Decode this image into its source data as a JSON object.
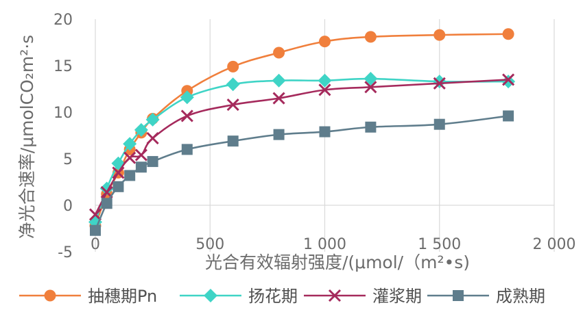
{
  "chart_data": {
    "type": "scatter",
    "title": "",
    "xlabel": "光合有效辐射强度/(μmol/（m²•s)",
    "ylabel": "净光合速率/μmolCO₂m²·s",
    "xlim": [
      0,
      2000
    ],
    "ylim": [
      -5,
      20
    ],
    "x_ticks": [
      "0",
      "500",
      "1 000",
      "1 500",
      "2 000"
    ],
    "y_ticks": [
      "-5",
      "0",
      "5",
      "10",
      "15",
      "20"
    ],
    "grid": "vertical",
    "legend_position": "bottom",
    "series": [
      {
        "name": "抽穗期Pn",
        "color": "#F07F3C",
        "marker": "circle",
        "points": [
          [
            0,
            -2.2
          ],
          [
            50,
            1.2
          ],
          [
            100,
            3.5
          ],
          [
            150,
            6.0
          ],
          [
            200,
            7.8
          ],
          [
            250,
            9.3
          ],
          [
            400,
            12.3
          ],
          [
            600,
            14.9
          ],
          [
            800,
            16.4
          ],
          [
            1000,
            17.6
          ],
          [
            1200,
            18.1
          ],
          [
            1500,
            18.3
          ],
          [
            1800,
            18.4
          ]
        ]
      },
      {
        "name": "扬花期",
        "color": "#3FD4C6",
        "marker": "diamond",
        "points": [
          [
            0,
            -1.8
          ],
          [
            50,
            1.8
          ],
          [
            100,
            4.5
          ],
          [
            150,
            6.6
          ],
          [
            200,
            8.1
          ],
          [
            250,
            9.2
          ],
          [
            400,
            11.6
          ],
          [
            600,
            13.0
          ],
          [
            800,
            13.4
          ],
          [
            1000,
            13.4
          ],
          [
            1200,
            13.6
          ],
          [
            1500,
            13.3
          ],
          [
            1800,
            13.3
          ]
        ]
      },
      {
        "name": "灌浆期",
        "color": "#A52A5C",
        "marker": "x",
        "points": [
          [
            0,
            -1.0
          ],
          [
            50,
            1.4
          ],
          [
            100,
            3.5
          ],
          [
            150,
            5.1
          ],
          [
            200,
            5.4
          ],
          [
            250,
            7.2
          ],
          [
            400,
            9.6
          ],
          [
            600,
            10.8
          ],
          [
            800,
            11.5
          ],
          [
            1000,
            12.4
          ],
          [
            1200,
            12.7
          ],
          [
            1500,
            13.1
          ],
          [
            1800,
            13.5
          ]
        ]
      },
      {
        "name": "成熟期",
        "color": "#5F7D8C",
        "marker": "square",
        "points": [
          [
            0,
            -2.7
          ],
          [
            50,
            0.2
          ],
          [
            100,
            2.0
          ],
          [
            150,
            3.2
          ],
          [
            200,
            4.1
          ],
          [
            250,
            4.7
          ],
          [
            400,
            6.0
          ],
          [
            600,
            6.9
          ],
          [
            800,
            7.6
          ],
          [
            1000,
            7.9
          ],
          [
            1200,
            8.4
          ],
          [
            1500,
            8.7
          ],
          [
            1800,
            9.6
          ]
        ]
      }
    ]
  }
}
